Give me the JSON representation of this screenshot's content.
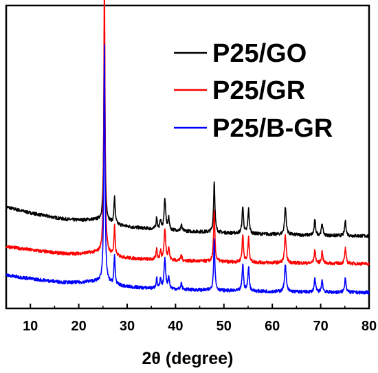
{
  "chart_data": {
    "type": "line",
    "title": "",
    "xlabel": "2θ (degree)",
    "ylabel": "",
    "xlim": [
      5,
      80
    ],
    "ylim": [
      0,
      100
    ],
    "xticks": [
      "10",
      "20",
      "30",
      "40",
      "50",
      "60",
      "70",
      "80"
    ],
    "grid": false,
    "legend_position": "top-right",
    "peaks_2theta": [
      25.3,
      27.4,
      36.1,
      36.9,
      37.8,
      38.6,
      41.2,
      48.0,
      53.9,
      55.1,
      62.7,
      68.8,
      70.3,
      75.1
    ],
    "series": [
      {
        "name": "P25/GO",
        "color": "#000000",
        "baseline_start": 33.5,
        "baseline_end": 23.5,
        "peak_heights": [
          67,
          9,
          4,
          3,
          10,
          4,
          2,
          17,
          9,
          8,
          9,
          5,
          4,
          5
        ]
      },
      {
        "name": "P25/GR",
        "color": "#ff0000",
        "baseline_start": 20.5,
        "baseline_end": 14.5,
        "peak_heights": [
          92,
          9.5,
          3.5,
          3,
          10,
          4,
          2,
          16.5,
          9,
          8,
          9,
          4.5,
          4,
          5
        ]
      },
      {
        "name": "P25/B-GR",
        "color": "#0000ff",
        "baseline_start": 11,
        "baseline_end": 5,
        "peak_heights": [
          78,
          9.5,
          3.5,
          3,
          10,
          4,
          2,
          16.5,
          9,
          8,
          9,
          4.5,
          4,
          5
        ]
      }
    ]
  }
}
